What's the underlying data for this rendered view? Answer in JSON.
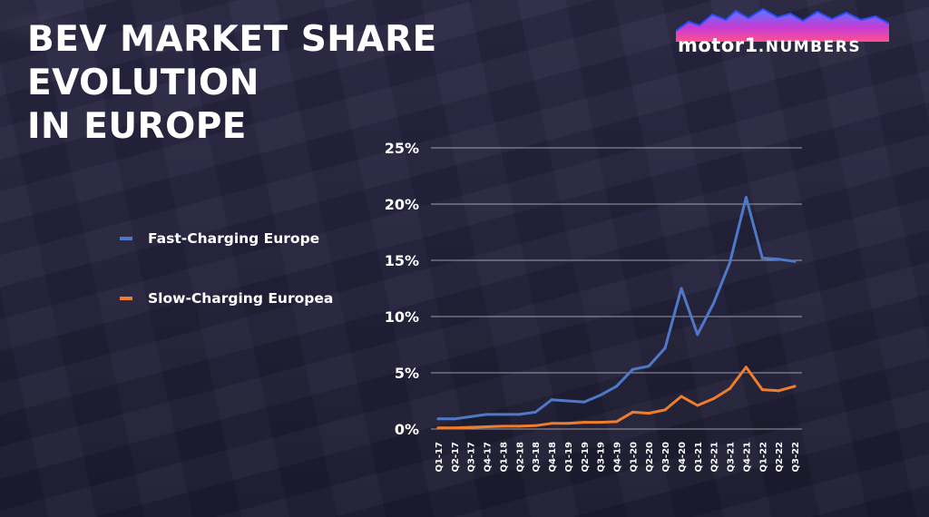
{
  "title": {
    "line1": "BEV MARKET SHARE EVOLUTION",
    "line2": "IN EUROPE"
  },
  "logo": {
    "text_left": "motor",
    "text_number": "1",
    "text_right": ".NUMBERS",
    "colors": {
      "mountain_top": "#5a78ff",
      "mountain_mid": "#c33cd6",
      "mountain_bottom": "#ff4f8f"
    }
  },
  "chart_data": {
    "type": "line",
    "title": "BEV MARKET SHARE EVOLUTION IN EUROPE",
    "xlabel": "",
    "ylabel": "",
    "ylim": [
      0,
      25
    ],
    "yticks": [
      0,
      5,
      10,
      15,
      20,
      25
    ],
    "ytick_labels": [
      "0%",
      "5%",
      "10%",
      "15%",
      "20%",
      "25%"
    ],
    "grid": true,
    "legend_position": "left",
    "categories": [
      "Q1-17",
      "Q2-17",
      "Q3-17",
      "Q4-17",
      "Q1-18",
      "Q2-18",
      "Q3-18",
      "Q4-18",
      "Q1-19",
      "Q2-19",
      "Q3-19",
      "Q4-19",
      "Q1-20",
      "Q2-20",
      "Q3-20",
      "Q4-20",
      "Q1-21",
      "Q2-21",
      "Q3-21",
      "Q4-21",
      "Q1-22",
      "Q2-22",
      "Q3-22"
    ],
    "series": [
      {
        "name": "Fast-Charging Europe",
        "color": "#4f78c8",
        "values": [
          0.9,
          0.9,
          1.1,
          1.3,
          1.3,
          1.3,
          1.5,
          2.6,
          2.5,
          2.4,
          3.0,
          3.8,
          5.3,
          5.6,
          7.2,
          12.5,
          8.4,
          11.2,
          14.8,
          20.6,
          15.2,
          15.1,
          14.9
        ]
      },
      {
        "name": "Slow-Charging Europea",
        "color": "#ef7d2e",
        "values": [
          0.1,
          0.1,
          0.15,
          0.2,
          0.25,
          0.25,
          0.3,
          0.5,
          0.5,
          0.6,
          0.6,
          0.65,
          1.5,
          1.4,
          1.7,
          2.9,
          2.1,
          2.7,
          3.6,
          5.5,
          3.5,
          3.4,
          3.8
        ]
      }
    ]
  }
}
